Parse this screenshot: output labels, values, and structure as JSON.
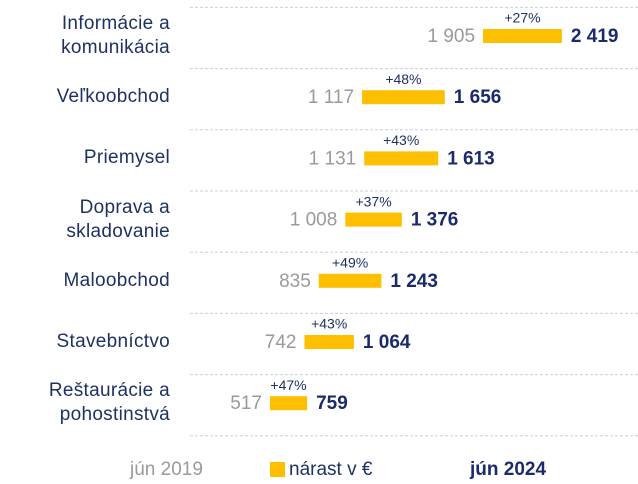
{
  "chart_data": {
    "type": "range-bar",
    "categories": [
      "Informácie a\nkomunikácia",
      "Veľkoobchod",
      "Priemysel",
      "Doprava a\nskladovanie",
      "Maloobchod",
      "Stavebníctvo",
      "Reštaurácie a\npohostinstvá"
    ],
    "series": [
      {
        "name": "jún 2019",
        "color": "#9a9a9a",
        "values": [
          1905,
          1117,
          1131,
          1008,
          835,
          742,
          517
        ],
        "value_labels": [
          "1 905",
          "1 117",
          "1 131",
          "1 008",
          "835",
          "742",
          "517"
        ]
      },
      {
        "name": "jún 2024",
        "color": "#1b2a6b",
        "values": [
          2419,
          1656,
          1613,
          1376,
          1243,
          1064,
          759
        ],
        "value_labels": [
          "2 419",
          "1 656",
          "1 613",
          "1 376",
          "1 243",
          "1 064",
          "759"
        ]
      }
    ],
    "growth": {
      "name": "nárast v €",
      "color": "#fdbf00",
      "values": [
        27,
        48,
        43,
        37,
        49,
        43,
        47
      ],
      "value_labels": [
        "+27%",
        "+48%",
        "+43%",
        "+37%",
        "+49%",
        "+43%",
        "+47%"
      ]
    }
  }
}
